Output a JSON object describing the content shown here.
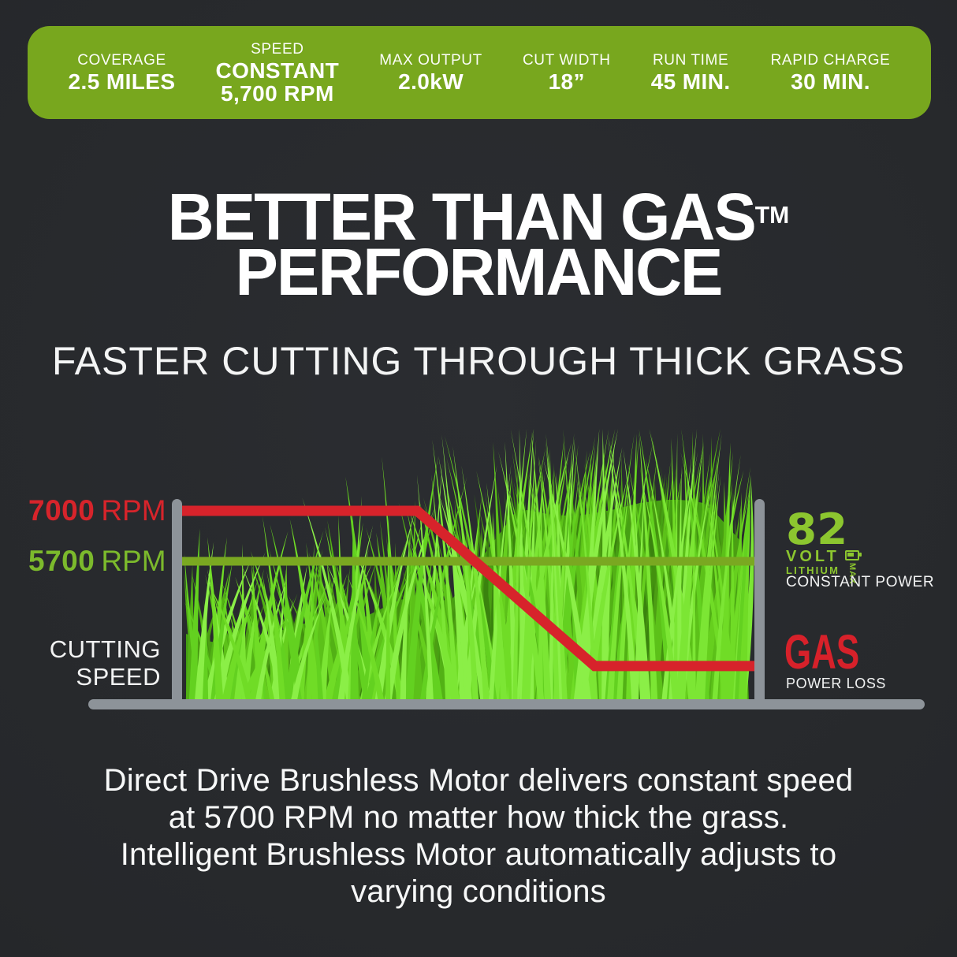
{
  "colors": {
    "background": "#26282b",
    "banner_green": "#78a71e",
    "logo_green": "#8cc62f",
    "line_green": "#7aa821",
    "tick_green": "#7cba2c",
    "red": "#d7232b",
    "axis_gray": "#8d9399",
    "white": "#ffffff"
  },
  "banner": {
    "items": [
      {
        "label": "COVERAGE",
        "value_lines": [
          "2.5 MILES"
        ]
      },
      {
        "label": "SPEED",
        "value_lines": [
          "CONSTANT",
          "5,700 RPM"
        ]
      },
      {
        "label": "MAX OUTPUT",
        "value_lines": [
          "2.0kW"
        ]
      },
      {
        "label": "CUT WIDTH",
        "value_lines": [
          "18”"
        ]
      },
      {
        "label": "RUN TIME",
        "value_lines": [
          "45 MIN."
        ]
      },
      {
        "label": "RAPID CHARGE",
        "value_lines": [
          "30 MIN."
        ]
      }
    ]
  },
  "headline": {
    "line1": "BETTER THAN GAS",
    "trademark": "TM",
    "line2": "PERFORMANCE"
  },
  "subtitle": "FASTER CUTTING THROUGH THICK GRASS",
  "chart": {
    "gas_tick": {
      "value": "7000",
      "unit": "RPM"
    },
    "battery_tick": {
      "value": "5700",
      "unit": "RPM"
    },
    "axis_label_lines": [
      "CUTTING",
      "SPEED"
    ],
    "battery_brand": {
      "number": "82",
      "volt": "VOLT",
      "lithium": "LITHIUM",
      "max": "MAX"
    },
    "battery_caption": "CONSTANT POWER",
    "gas_label": "GAS",
    "gas_caption": "POWER LOSS"
  },
  "paragraph": {
    "lines": [
      "Direct Drive Brushless Motor delivers constant speed",
      "at 5700 RPM no matter how thick the grass.",
      "Intelligent Brushless Motor automatically adjusts to",
      "varying conditions"
    ]
  },
  "chart_data": {
    "type": "line",
    "title": "FASTER CUTTING THROUGH THICK GRASS",
    "ylabel": "CUTTING SPEED",
    "y_unit": "RPM",
    "y_ticks": [
      7000,
      5700
    ],
    "x_meaning": "progress through thick grass patch (percent)",
    "grid": false,
    "legend_position": "right",
    "series": [
      {
        "name": "GAS",
        "caption": "POWER LOSS",
        "color": "#d7232b",
        "x_percent": [
          0,
          41,
          72,
          100
        ],
        "values": [
          7000,
          7000,
          3000,
          3000
        ]
      },
      {
        "name": "82 VOLT LITHIUM MAX",
        "caption": "CONSTANT POWER",
        "color": "#7aa821",
        "x_percent": [
          0,
          100
        ],
        "values": [
          5700,
          5700
        ]
      }
    ]
  }
}
